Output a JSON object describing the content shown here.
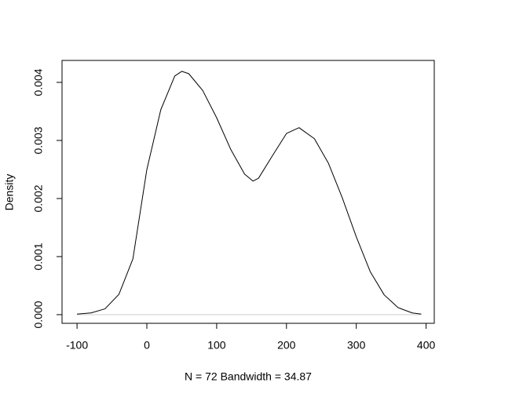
{
  "chart_data": {
    "type": "line",
    "xlabel": "N = 72   Bandwidth = 34.87",
    "ylabel": "Density",
    "x": [
      -100,
      -80,
      -60,
      -40,
      -20,
      0,
      20,
      40,
      50,
      60,
      80,
      100,
      120,
      140,
      152,
      160,
      180,
      200,
      218,
      240,
      260,
      280,
      300,
      320,
      340,
      360,
      380,
      393
    ],
    "series": [
      {
        "name": "density",
        "color": "#000000",
        "values": [
          1e-05,
          3e-05,
          0.0001,
          0.00035,
          0.00096,
          0.0025,
          0.00353,
          0.00411,
          0.00419,
          0.00415,
          0.00386,
          0.00339,
          0.00285,
          0.00242,
          0.0023,
          0.00235,
          0.00274,
          0.00312,
          0.00322,
          0.00303,
          0.00261,
          0.00201,
          0.00134,
          0.00074,
          0.00034,
          0.00012,
          3e-05,
          1e-05
        ]
      }
    ],
    "xlim": [
      -121.5,
      411.7
    ],
    "ylim": [
      -0.000149,
      0.004378
    ],
    "xticks": [
      -100,
      0,
      100,
      200,
      300,
      400
    ],
    "yticks": [
      {
        "value": 0,
        "label": "0.000"
      },
      {
        "value": 0.001,
        "label": "0.001"
      },
      {
        "value": 0.002,
        "label": "0.002"
      },
      {
        "value": 0.003,
        "label": "0.003"
      },
      {
        "value": 0.004,
        "label": "0.004"
      }
    ],
    "grid": false
  }
}
